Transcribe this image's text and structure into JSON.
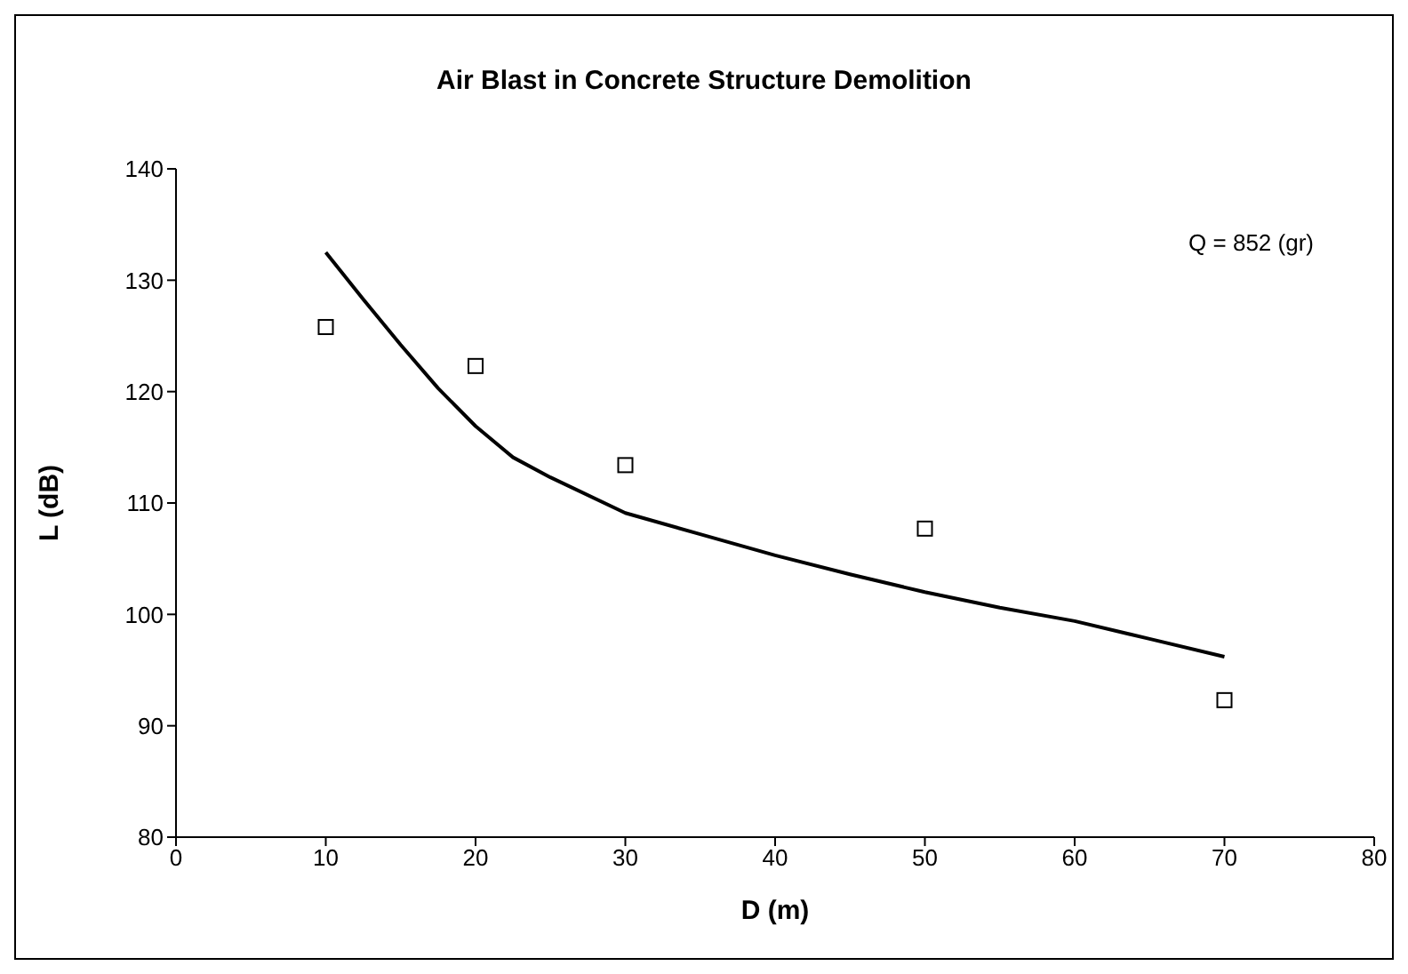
{
  "chart_data": {
    "type": "scatter",
    "title": "Air Blast in Concrete Structure Demolition",
    "xlabel": "D (m)",
    "ylabel": "L (dB)",
    "annotations": [
      "Q = 852 (gr)"
    ],
    "xlim": [
      0,
      80
    ],
    "xticks": [
      0,
      10,
      20,
      30,
      40,
      50,
      60,
      70,
      80
    ],
    "ylim": [
      80,
      140
    ],
    "yticks": [
      80,
      90,
      100,
      110,
      120,
      130,
      140
    ],
    "grid": false,
    "legend": false,
    "series": [
      {
        "color": "#000000",
        "marker": "square",
        "x": [
          10,
          20,
          30,
          50,
          70
        ],
        "values": [
          125.8,
          122.3,
          113.4,
          107.7,
          92.3
        ]
      },
      {
        "type": "line",
        "color": "#000000",
        "marker": "none",
        "line_style": "solid",
        "x": [
          10,
          12.5,
          15,
          17.5,
          20,
          22.5,
          25,
          30,
          35,
          40,
          45,
          50,
          55,
          60,
          65,
          70
        ],
        "values": [
          132.5,
          128.3,
          124.2,
          120.3,
          116.9,
          114.1,
          112.3,
          109.1,
          107.2,
          105.3,
          103.6,
          102.0,
          100.6,
          99.4,
          97.8,
          96.2
        ]
      }
    ]
  }
}
